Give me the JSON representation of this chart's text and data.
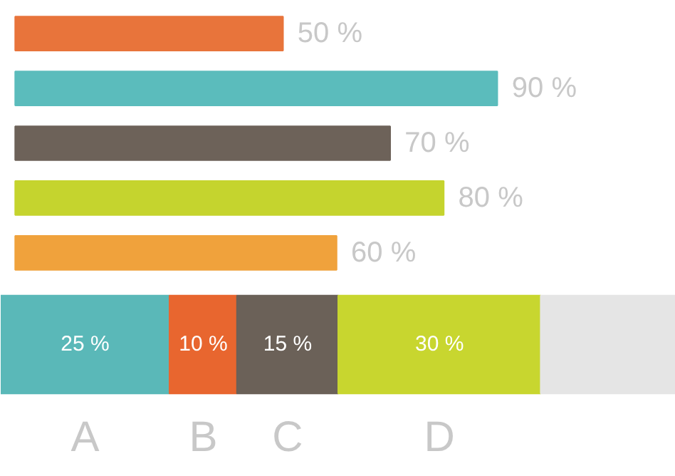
{
  "chart_data": [
    {
      "type": "bar",
      "orientation": "horizontal",
      "categories": [
        null,
        null,
        null,
        null,
        null
      ],
      "values": [
        50,
        90,
        70,
        80,
        60
      ],
      "colors": [
        "#e8743b",
        "#5bbcbc",
        "#6d6259",
        "#c5d42e",
        "#f0a23c"
      ],
      "value_labels": [
        "50 %",
        "90 %",
        "70 %",
        "80 %",
        "60 %"
      ],
      "tick_labels": false
    },
    {
      "type": "bar",
      "orientation": "horizontal",
      "stacked": true,
      "categories": [
        null
      ],
      "xlim": [
        0,
        100
      ],
      "tick_labels": false,
      "series": [
        {
          "name": "A",
          "color": "#5ab8b8",
          "values": [
            25
          ],
          "value_labels": [
            "25 %"
          ]
        },
        {
          "name": "B",
          "color": "#e8662f",
          "values": [
            10
          ],
          "value_labels": [
            "10 %"
          ]
        },
        {
          "name": "C",
          "color": "#6b6158",
          "values": [
            15
          ],
          "value_labels": [
            "15 %"
          ]
        },
        {
          "name": "D",
          "color": "#c8d62f",
          "values": [
            30
          ],
          "value_labels": [
            "30 %"
          ]
        },
        {
          "color": "#e5e5e5",
          "values": [
            20
          ],
          "value_labels": [
            null
          ]
        }
      ]
    }
  ]
}
